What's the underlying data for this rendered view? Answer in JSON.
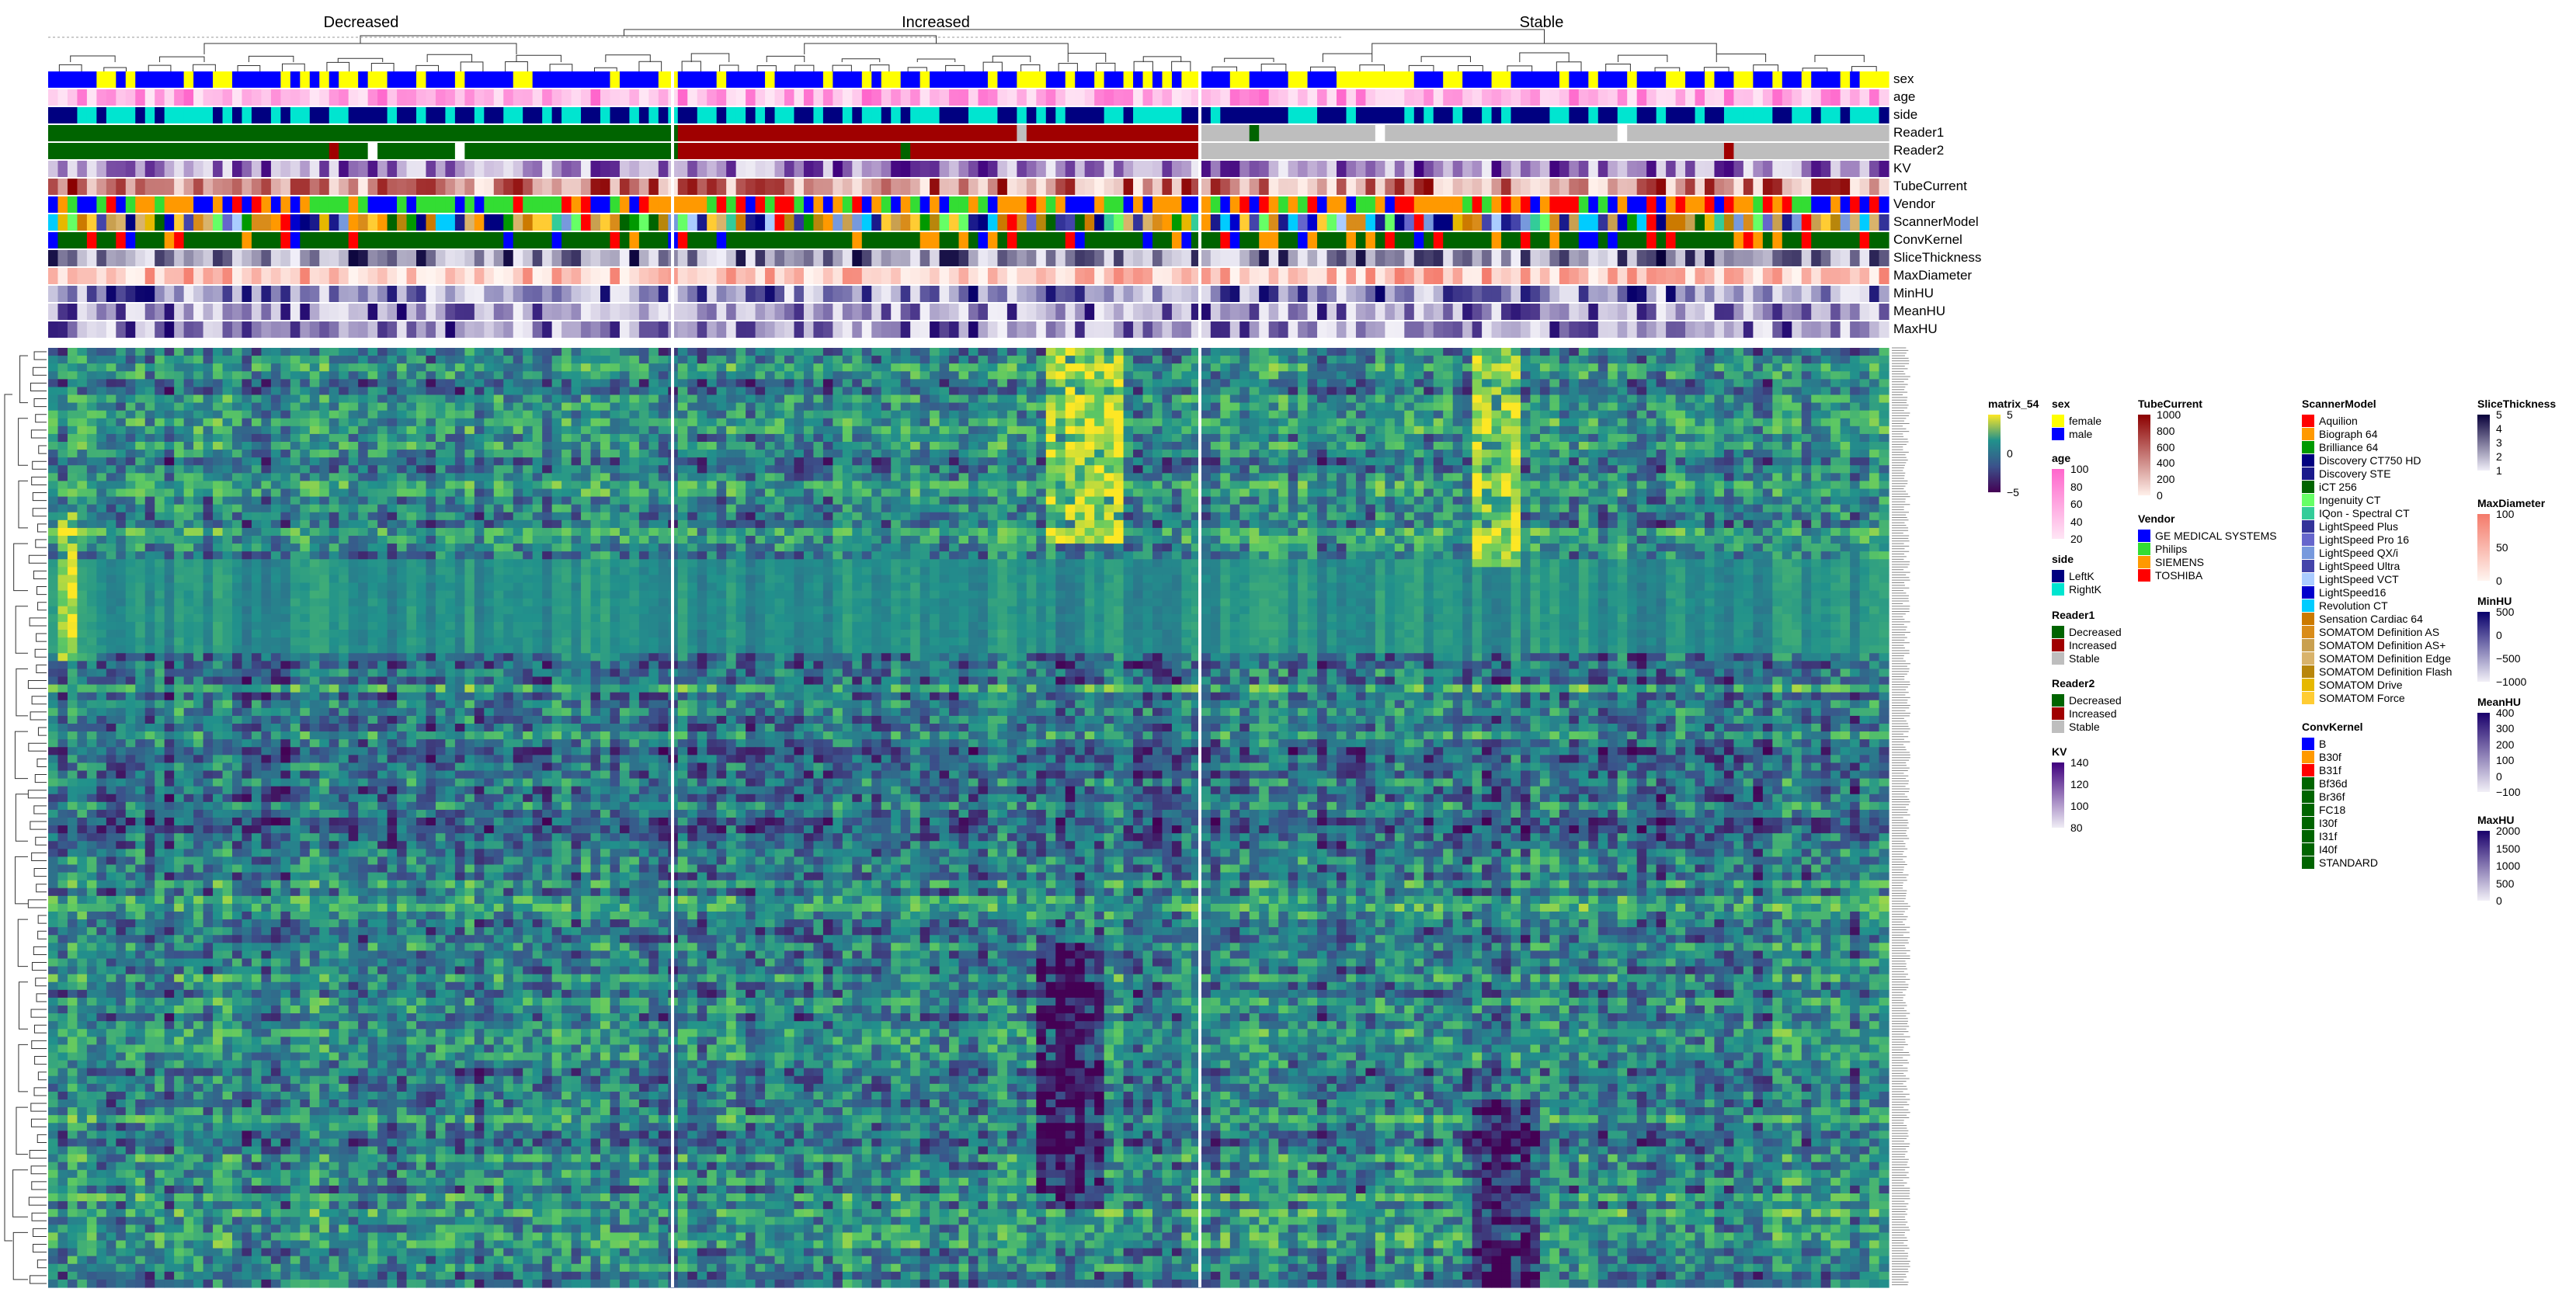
{
  "chart_data": {
    "type": "heatmap",
    "column_groups": [
      "Decreased",
      "Increased",
      "Stable"
    ],
    "annotation_tracks": [
      "sex",
      "age",
      "side",
      "Reader1",
      "Reader2",
      "KV",
      "TubeCurrent",
      "Vendor",
      "ScannerModel",
      "ConvKernel",
      "SliceThickness",
      "MaxDiameter",
      "MinHU",
      "MeanHU",
      "MaxHU"
    ],
    "matrix_legend": {
      "title": "matrix_54",
      "ticks": [
        "5",
        "0",
        "−5"
      ],
      "colors": [
        "#fde725",
        "#21918c",
        "#3b528b",
        "#440154"
      ]
    },
    "legends": {
      "sex": [
        {
          "label": "female",
          "color": "#ffff00"
        },
        {
          "label": "male",
          "color": "#0000ff"
        }
      ],
      "age": {
        "ticks": [
          "100",
          "80",
          "60",
          "40",
          "20"
        ],
        "colors": [
          "#ff66cc",
          "#ffe6f5"
        ]
      },
      "side": [
        {
          "label": "LeftK",
          "color": "#000080"
        },
        {
          "label": "RightK",
          "color": "#00e5d0"
        }
      ],
      "Reader1": [
        {
          "label": "Decreased",
          "color": "#006400"
        },
        {
          "label": "Increased",
          "color": "#a00000"
        },
        {
          "label": "Stable",
          "color": "#bebebe"
        }
      ],
      "Reader2": [
        {
          "label": "Decreased",
          "color": "#006400"
        },
        {
          "label": "Increased",
          "color": "#a00000"
        },
        {
          "label": "Stable",
          "color": "#bebebe"
        }
      ],
      "KV": {
        "ticks": [
          "140",
          "120",
          "100",
          "80"
        ],
        "colors": [
          "#3f007d",
          "#efedf5"
        ]
      },
      "TubeCurrent": {
        "ticks": [
          "1000",
          "800",
          "600",
          "400",
          "200",
          "0"
        ],
        "colors": [
          "#8b0000",
          "#fff0ea"
        ]
      },
      "Vendor": [
        {
          "label": "GE MEDICAL SYSTEMS",
          "color": "#0000ff"
        },
        {
          "label": "Philips",
          "color": "#33dd33"
        },
        {
          "label": "SIEMENS",
          "color": "#ff9900"
        },
        {
          "label": "TOSHIBA",
          "color": "#ff0000"
        }
      ],
      "ScannerModel": [
        {
          "label": "Aquilion",
          "color": "#ff0000"
        },
        {
          "label": "Biograph 64",
          "color": "#ff9900"
        },
        {
          "label": "Brilliance 64",
          "color": "#009900"
        },
        {
          "label": "Discovery CT750 HD",
          "color": "#000080"
        },
        {
          "label": "Discovery STE",
          "color": "#1a1a8c"
        },
        {
          "label": "iCT 256",
          "color": "#006400"
        },
        {
          "label": "Ingenuity CT",
          "color": "#66ff66"
        },
        {
          "label": "IQon - Spectral CT",
          "color": "#33cc99"
        },
        {
          "label": "LightSpeed Plus",
          "color": "#333399"
        },
        {
          "label": "LightSpeed Pro 16",
          "color": "#6666cc"
        },
        {
          "label": "LightSpeed QX/i",
          "color": "#7799dd"
        },
        {
          "label": "LightSpeed Ultra",
          "color": "#4444aa"
        },
        {
          "label": "LightSpeed VCT",
          "color": "#aaccff"
        },
        {
          "label": "LightSpeed16",
          "color": "#0000cc"
        },
        {
          "label": "Revolution CT",
          "color": "#00ccff"
        },
        {
          "label": "Sensation Cardiac 64",
          "color": "#cc7a00"
        },
        {
          "label": "SOMATOM Definition AS",
          "color": "#d98c1a"
        },
        {
          "label": "SOMATOM Definition AS+",
          "color": "#c9a050"
        },
        {
          "label": "SOMATOM Definition Edge",
          "color": "#d9b36b"
        },
        {
          "label": "SOMATOM Definition Flash",
          "color": "#b8860b"
        },
        {
          "label": "SOMATOM Drive",
          "color": "#e6b800"
        },
        {
          "label": "SOMATOM Force",
          "color": "#ffcc33"
        }
      ],
      "ConvKernel": [
        {
          "label": "B",
          "color": "#0000ff"
        },
        {
          "label": "B30f",
          "color": "#ff9900"
        },
        {
          "label": "B31f",
          "color": "#ff0000"
        },
        {
          "label": "Bf36d",
          "color": "#006400"
        },
        {
          "label": "Br36f",
          "color": "#006400"
        },
        {
          "label": "FC18",
          "color": "#006400"
        },
        {
          "label": "I30f",
          "color": "#006400"
        },
        {
          "label": "I31f",
          "color": "#006400"
        },
        {
          "label": "I40f",
          "color": "#006400"
        },
        {
          "label": "STANDARD",
          "color": "#006400"
        }
      ],
      "SliceThickness": {
        "ticks": [
          "5",
          "4",
          "3",
          "2",
          "1"
        ],
        "colors": [
          "#08003a",
          "#f0eef8"
        ]
      },
      "MaxDiameter": {
        "ticks": [
          "100",
          "50",
          "0"
        ],
        "colors": [
          "#f47a6a",
          "#fff5f0"
        ]
      },
      "MinHU": {
        "ticks": [
          "500",
          "0",
          "−500",
          "−1000"
        ],
        "colors": [
          "#08006b",
          "#f2f0f7"
        ]
      },
      "MeanHU": {
        "ticks": [
          "400",
          "300",
          "200",
          "100",
          "0",
          "−100"
        ],
        "colors": [
          "#1a006b",
          "#f2f0f7"
        ]
      },
      "MaxHU": {
        "ticks": [
          "2000",
          "1500",
          "1000",
          "500",
          "0"
        ],
        "colors": [
          "#1a006b",
          "#f2f0f7"
        ]
      }
    }
  }
}
